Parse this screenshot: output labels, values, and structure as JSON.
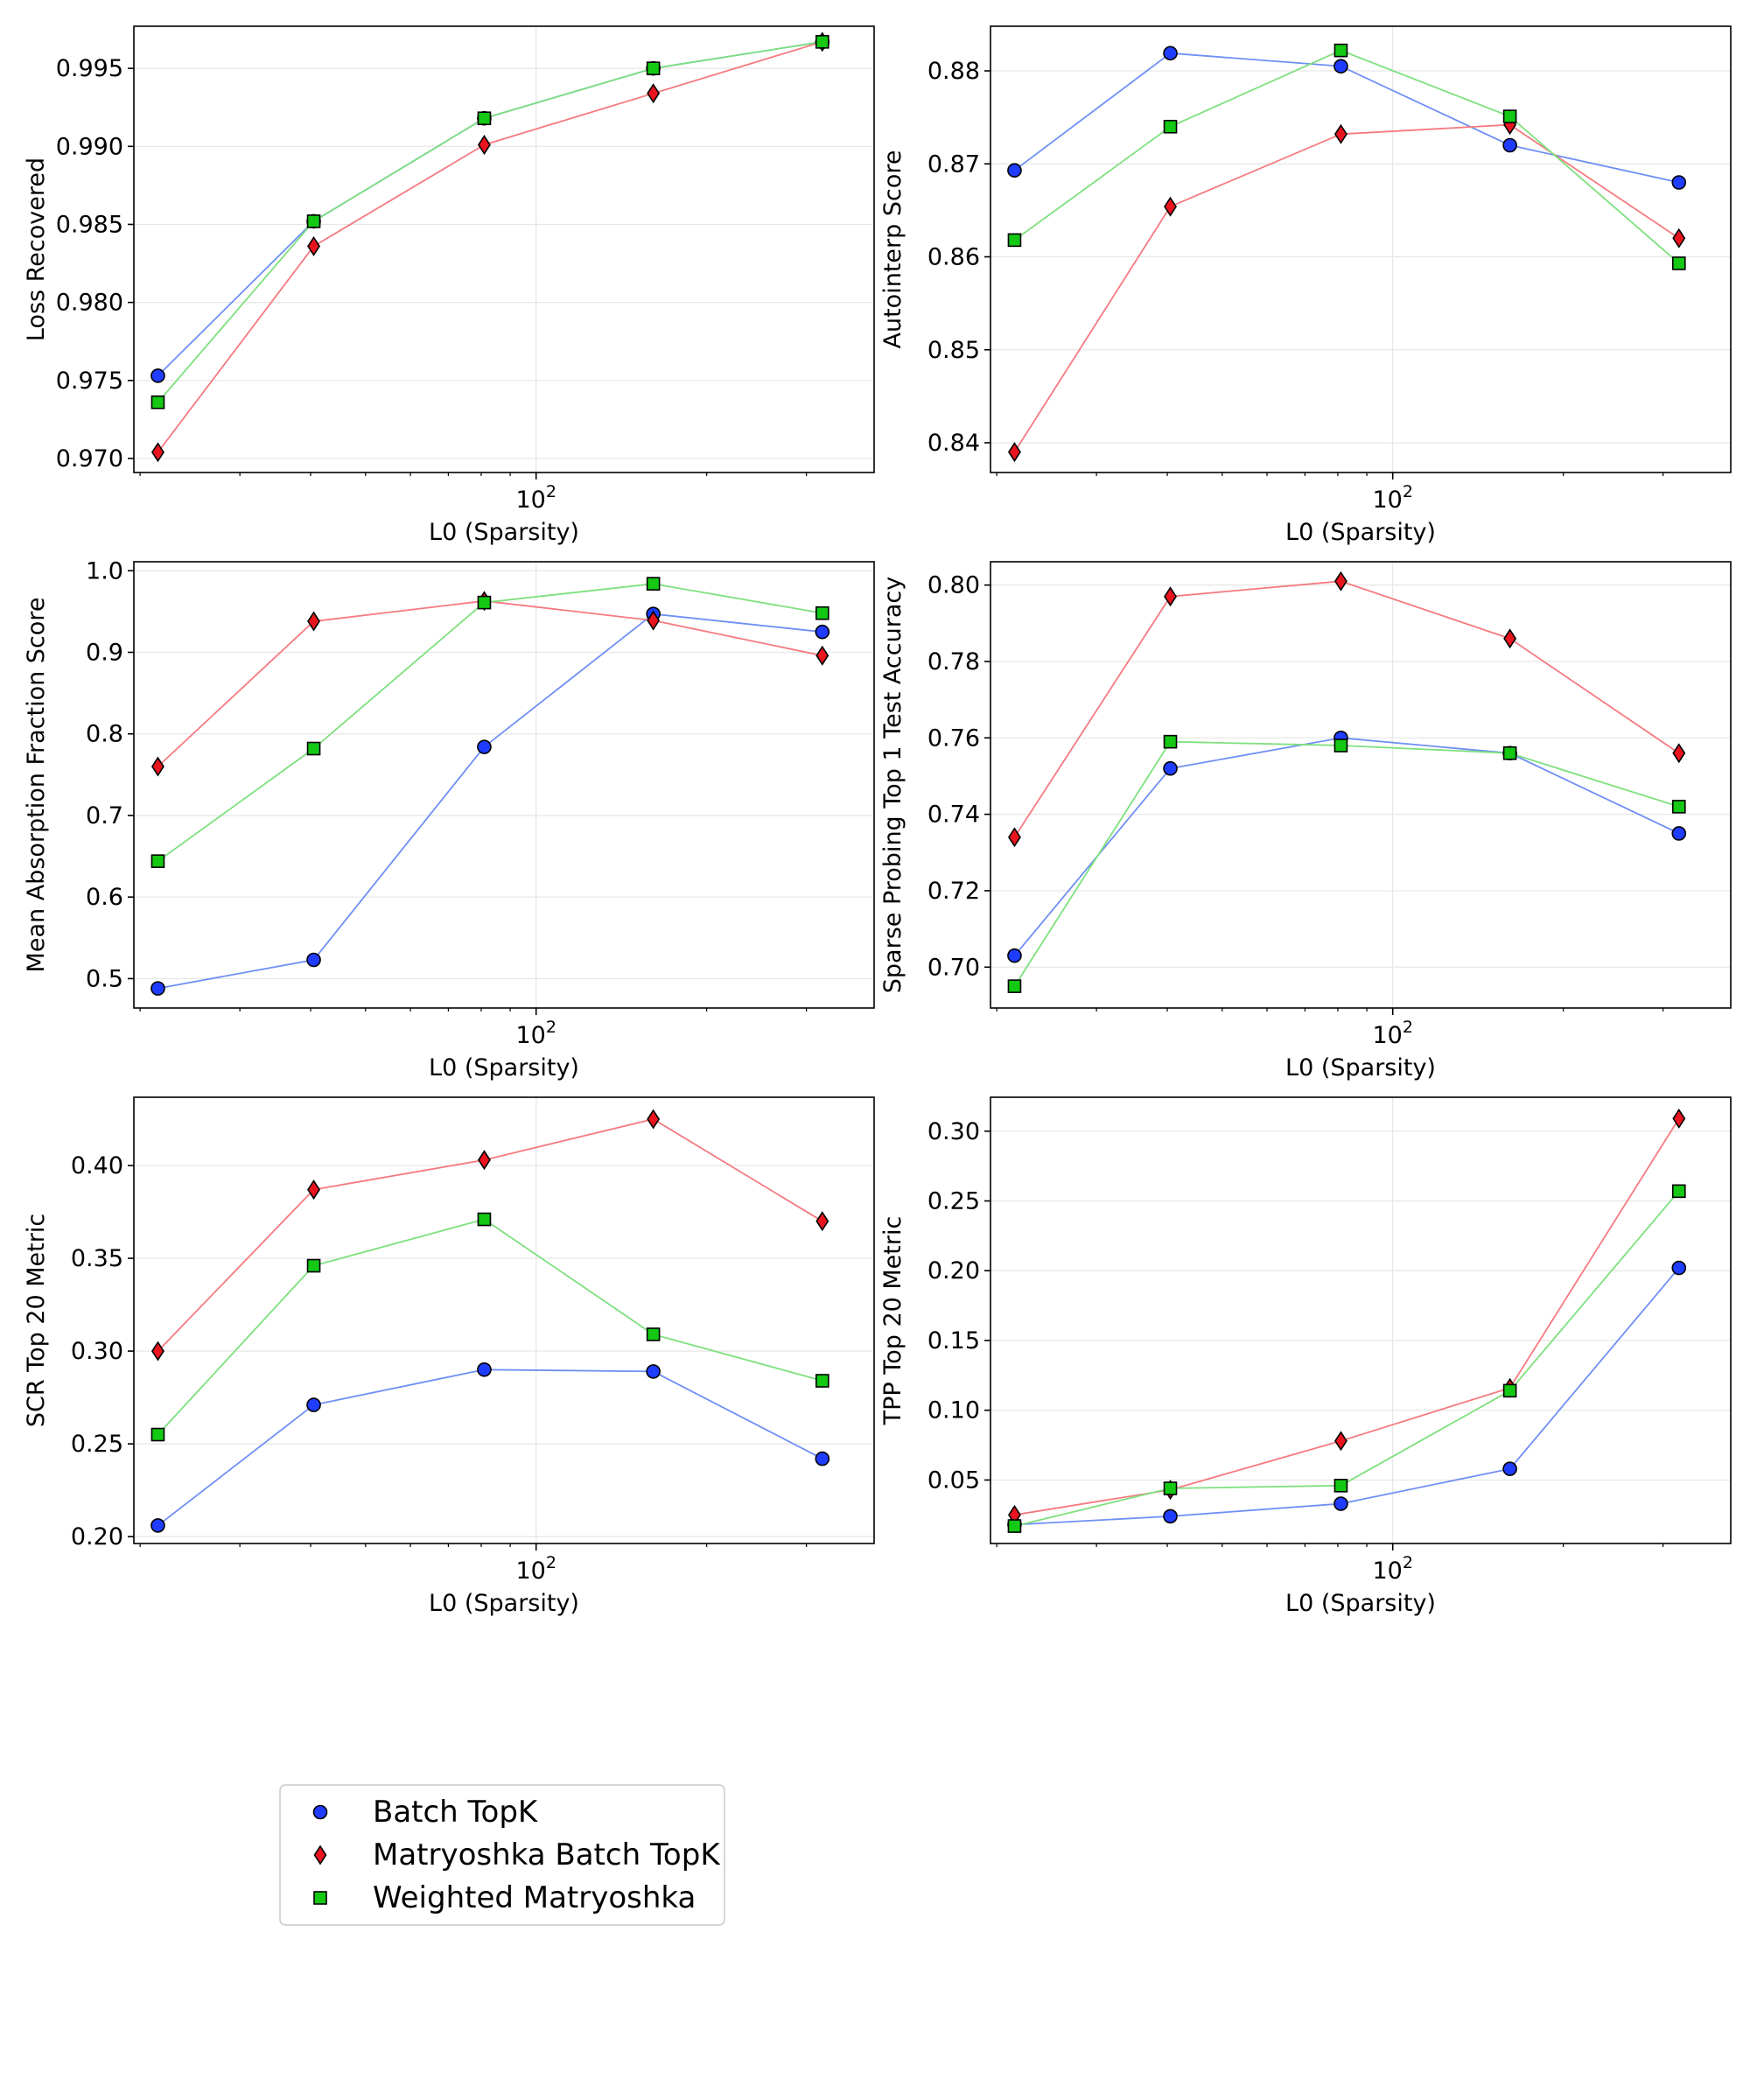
{
  "figure": {
    "legend": {
      "placement": "bottom-left",
      "entries": [
        {
          "name": "Batch TopK",
          "marker": "circle",
          "color": "#1f3cff"
        },
        {
          "name": "Matryoshka Batch TopK",
          "marker": "diamond",
          "color": "#e8141e"
        },
        {
          "name": "Weighted Matryoshka",
          "marker": "square",
          "color": "#14c814"
        }
      ]
    }
  },
  "chart_data": [
    {
      "type": "line",
      "xscale": "log",
      "xlabel": "L0 (Sparsity)",
      "ylabel": "Loss Recovered",
      "xlim": [
        19.5,
        395
      ],
      "ylim": [
        0.9691,
        0.9977
      ],
      "xticks": [
        {
          "value": 100,
          "base": "10",
          "exp": "2"
        }
      ],
      "yticks": [
        "0.970",
        "0.975",
        "0.980",
        "0.985",
        "0.990",
        "0.995"
      ],
      "ytick_values": [
        0.97,
        0.975,
        0.98,
        0.985,
        0.99,
        0.995
      ],
      "series": [
        {
          "name": "Batch TopK",
          "x": [
            21.5,
            40.5,
            81,
            161,
            320
          ],
          "y": [
            0.9753,
            0.9852,
            0.9918,
            0.995,
            0.9967
          ]
        },
        {
          "name": "Matryoshka Batch TopK",
          "x": [
            21.5,
            40.5,
            81,
            161,
            320
          ],
          "y": [
            0.9704,
            0.9836,
            0.9901,
            0.9934,
            0.9967
          ]
        },
        {
          "name": "Weighted Matryoshka",
          "x": [
            21.5,
            40.5,
            81,
            161,
            320
          ],
          "y": [
            0.9736,
            0.9852,
            0.9918,
            0.995,
            0.9967
          ]
        }
      ]
    },
    {
      "type": "line",
      "xscale": "log",
      "xlabel": "L0 (Sparsity)",
      "ylabel": "Autointerp Score",
      "xlim": [
        19.5,
        395
      ],
      "ylim": [
        0.8368,
        0.8848
      ],
      "xticks": [
        {
          "value": 100,
          "base": "10",
          "exp": "2"
        }
      ],
      "yticks": [
        "0.84",
        "0.85",
        "0.86",
        "0.87",
        "0.88"
      ],
      "ytick_values": [
        0.84,
        0.85,
        0.86,
        0.87,
        0.88
      ],
      "series": [
        {
          "name": "Batch TopK",
          "x": [
            21.5,
            40.5,
            81,
            161,
            320
          ],
          "y": [
            0.8693,
            0.8819,
            0.8805,
            0.872,
            0.868
          ]
        },
        {
          "name": "Matryoshka Batch TopK",
          "x": [
            21.5,
            40.5,
            81,
            161,
            320
          ],
          "y": [
            0.839,
            0.8654,
            0.8732,
            0.8742,
            0.862
          ]
        },
        {
          "name": "Weighted Matryoshka",
          "x": [
            21.5,
            40.5,
            81,
            161,
            320
          ],
          "y": [
            0.8618,
            0.874,
            0.8822,
            0.8751,
            0.8593
          ]
        }
      ]
    },
    {
      "type": "line",
      "xscale": "log",
      "xlabel": "L0 (Sparsity)",
      "ylabel": "Mean Absorption Fraction Score",
      "xlim": [
        19.5,
        395
      ],
      "ylim": [
        0.464,
        1.011
      ],
      "xticks": [
        {
          "value": 100,
          "base": "10",
          "exp": "2"
        }
      ],
      "yticks": [
        "0.5",
        "0.6",
        "0.7",
        "0.8",
        "0.9",
        "1.0"
      ],
      "ytick_values": [
        0.5,
        0.6,
        0.7,
        0.8,
        0.9,
        1.0
      ],
      "series": [
        {
          "name": "Batch TopK",
          "x": [
            21.5,
            40.5,
            81,
            161,
            320
          ],
          "y": [
            0.488,
            0.523,
            0.784,
            0.947,
            0.925
          ]
        },
        {
          "name": "Matryoshka Batch TopK",
          "x": [
            21.5,
            40.5,
            81,
            161,
            320
          ],
          "y": [
            0.76,
            0.938,
            0.963,
            0.939,
            0.896
          ]
        },
        {
          "name": "Weighted Matryoshka",
          "x": [
            21.5,
            40.5,
            81,
            161,
            320
          ],
          "y": [
            0.644,
            0.782,
            0.961,
            0.984,
            0.948
          ]
        }
      ]
    },
    {
      "type": "line",
      "xscale": "log",
      "xlabel": "L0 (Sparsity)",
      "ylabel": "Sparse Probing Top 1 Test Accuracy",
      "xlim": [
        19.5,
        395
      ],
      "ylim": [
        0.6893,
        0.8061
      ],
      "xticks": [
        {
          "value": 100,
          "base": "10",
          "exp": "2"
        }
      ],
      "yticks": [
        "0.70",
        "0.72",
        "0.74",
        "0.76",
        "0.78",
        "0.80"
      ],
      "ytick_values": [
        0.7,
        0.72,
        0.74,
        0.76,
        0.78,
        0.8
      ],
      "series": [
        {
          "name": "Batch TopK",
          "x": [
            21.5,
            40.5,
            81,
            161,
            320
          ],
          "y": [
            0.703,
            0.752,
            0.76,
            0.756,
            0.735
          ]
        },
        {
          "name": "Matryoshka Batch TopK",
          "x": [
            21.5,
            40.5,
            81,
            161,
            320
          ],
          "y": [
            0.734,
            0.797,
            0.801,
            0.786,
            0.756
          ]
        },
        {
          "name": "Weighted Matryoshka",
          "x": [
            21.5,
            40.5,
            81,
            161,
            320
          ],
          "y": [
            0.695,
            0.759,
            0.758,
            0.756,
            0.742
          ]
        }
      ]
    },
    {
      "type": "line",
      "xscale": "log",
      "xlabel": "L0 (Sparsity)",
      "ylabel": "SCR Top 20 Metric",
      "xlim": [
        19.5,
        395
      ],
      "ylim": [
        0.1963,
        0.4368
      ],
      "xticks": [
        {
          "value": 100,
          "base": "10",
          "exp": "2"
        }
      ],
      "yticks": [
        "0.20",
        "0.25",
        "0.30",
        "0.35",
        "0.40"
      ],
      "ytick_values": [
        0.2,
        0.25,
        0.3,
        0.35,
        0.4
      ],
      "series": [
        {
          "name": "Batch TopK",
          "x": [
            21.5,
            40.5,
            81,
            161,
            320
          ],
          "y": [
            0.206,
            0.271,
            0.29,
            0.289,
            0.242
          ]
        },
        {
          "name": "Matryoshka Batch TopK",
          "x": [
            21.5,
            40.5,
            81,
            161,
            320
          ],
          "y": [
            0.3,
            0.387,
            0.403,
            0.425,
            0.37
          ]
        },
        {
          "name": "Weighted Matryoshka",
          "x": [
            21.5,
            40.5,
            81,
            161,
            320
          ],
          "y": [
            0.255,
            0.346,
            0.371,
            0.309,
            0.284
          ]
        }
      ]
    },
    {
      "type": "line",
      "xscale": "log",
      "xlabel": "L0 (Sparsity)",
      "ylabel": "TPP Top 20 Metric",
      "xlim": [
        19.5,
        395
      ],
      "ylim": [
        0.0045,
        0.3243
      ],
      "xticks": [
        {
          "value": 100,
          "base": "10",
          "exp": "2"
        }
      ],
      "yticks": [
        "0.05",
        "0.10",
        "0.15",
        "0.20",
        "0.25",
        "0.30"
      ],
      "ytick_values": [
        0.05,
        0.1,
        0.15,
        0.2,
        0.25,
        0.3
      ],
      "series": [
        {
          "name": "Batch TopK",
          "x": [
            21.5,
            40.5,
            81,
            161,
            320
          ],
          "y": [
            0.018,
            0.024,
            0.033,
            0.058,
            0.202
          ]
        },
        {
          "name": "Matryoshka Batch TopK",
          "x": [
            21.5,
            40.5,
            81,
            161,
            320
          ],
          "y": [
            0.025,
            0.043,
            0.078,
            0.116,
            0.309
          ]
        },
        {
          "name": "Weighted Matryoshka",
          "x": [
            21.5,
            40.5,
            81,
            161,
            320
          ],
          "y": [
            0.017,
            0.044,
            0.046,
            0.114,
            0.257
          ]
        }
      ]
    }
  ]
}
